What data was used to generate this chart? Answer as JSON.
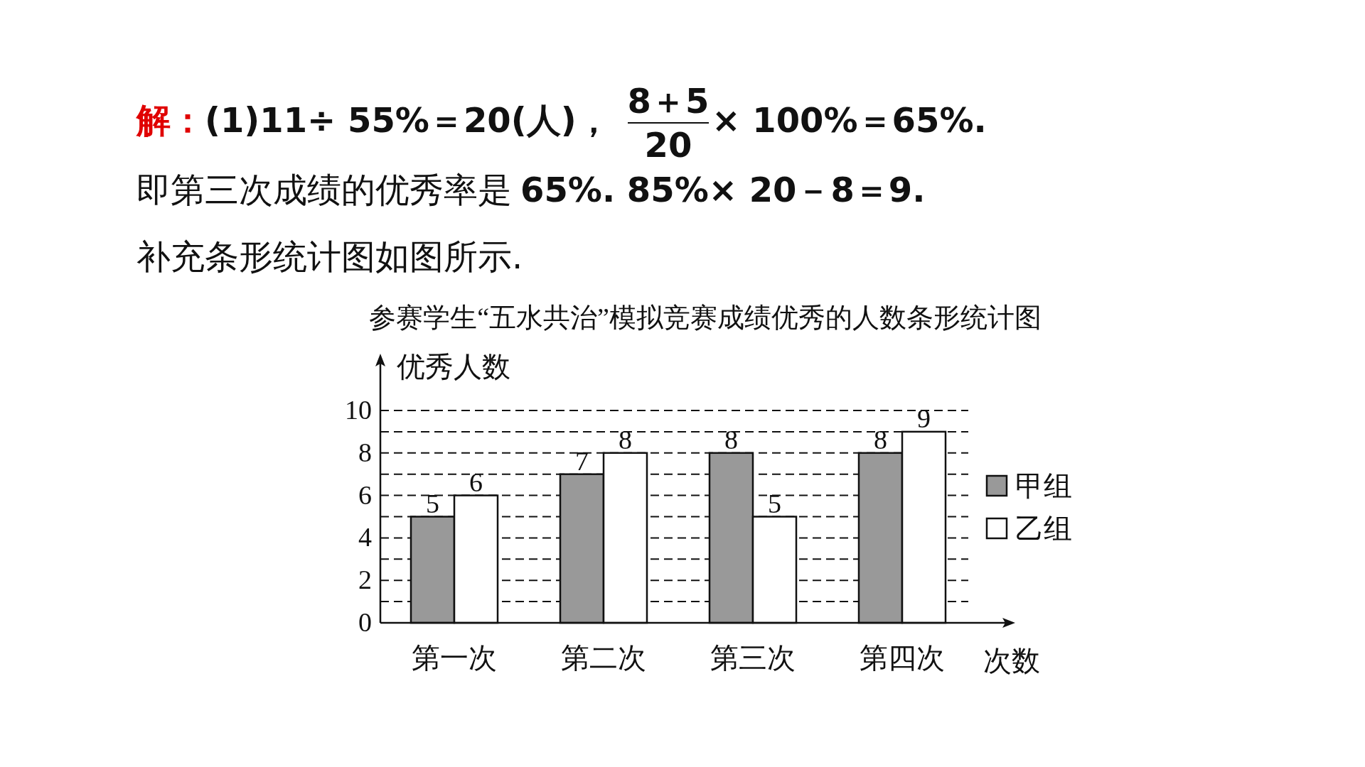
{
  "chart_data": {
    "type": "bar",
    "title": "参赛学生“五水共治”模拟竞赛成绩优秀的人数条形统计图",
    "ylabel": "优秀人数",
    "xlabel": "次数",
    "categories": [
      "第一次",
      "第二次",
      "第三次",
      "第四次"
    ],
    "series": [
      {
        "name": "甲组",
        "color": "#999999",
        "values": [
          5,
          7,
          8,
          8
        ]
      },
      {
        "name": "乙组",
        "color": "#ffffff",
        "values": [
          6,
          8,
          5,
          9
        ]
      }
    ],
    "ylim": [
      0,
      10
    ],
    "yticks": [
      0,
      {
        "value": 1,
        "label": null
      },
      2,
      {
        "value": 3,
        "label": null
      },
      4,
      {
        "value": 5,
        "label": null
      },
      6,
      {
        "value": 7,
        "label": null
      },
      8,
      {
        "value": 9,
        "label": null
      },
      10
    ],
    "grid": "y",
    "legend": "right",
    "data_labels": true,
    "annotations": [
      "解：",
      "(1)11÷ 55%＝20(人)，",
      "8＋5",
      "20",
      "× 100%＝65%.",
      "即第三次成绩的优秀率是",
      "65%.  85%× 20－8＝9.",
      "补充条形统计图如图所示."
    ]
  }
}
